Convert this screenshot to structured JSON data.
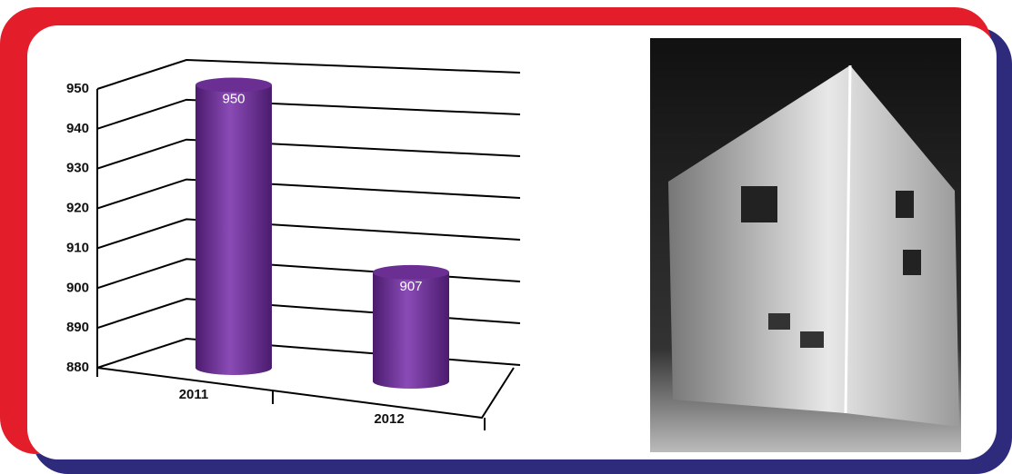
{
  "chart_data": {
    "type": "bar",
    "categories": [
      "2011",
      "2012"
    ],
    "values": [
      950,
      907
    ],
    "color": "#6b2f93",
    "ylim": [
      880,
      950
    ],
    "yticks": [
      880,
      890,
      900,
      910,
      920,
      930,
      940,
      950
    ],
    "grid": true
  }
}
